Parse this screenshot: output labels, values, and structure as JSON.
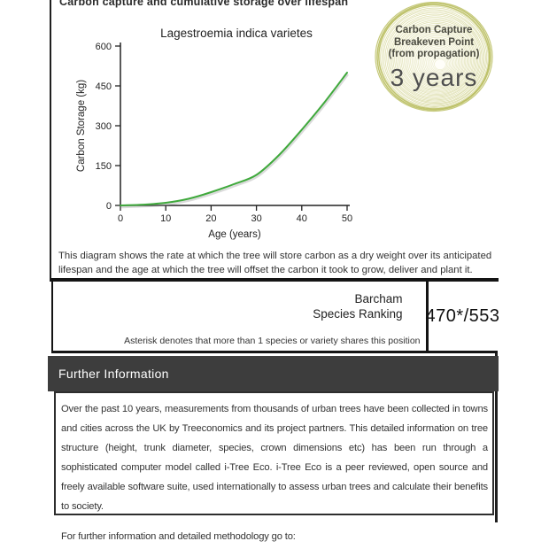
{
  "header": {
    "title": "Carbon capture and cumulative storage over lifespan"
  },
  "badge": {
    "line1": "Carbon Capture",
    "line2": "Breakeven Point",
    "line3": "(from propagation)",
    "value": "3 years",
    "ring_color": "#c5c87b",
    "ring_outer_color": "#bcc065"
  },
  "chart_data": {
    "type": "line",
    "title": "Lagestroemia indica varietes",
    "xlabel": "Age (years)",
    "ylabel": "Carbon Storage (kg)",
    "x": [
      0,
      5,
      10,
      15,
      20,
      25,
      30,
      35,
      40,
      45,
      50
    ],
    "values": [
      0,
      3,
      10,
      25,
      50,
      80,
      115,
      190,
      285,
      388,
      500
    ],
    "x_ticks": [
      0,
      10,
      20,
      30,
      40,
      50
    ],
    "y_ticks": [
      0,
      150,
      300,
      450,
      600
    ],
    "xlim": [
      0,
      50
    ],
    "ylim": [
      0,
      600
    ],
    "line_color": "#3fa93c",
    "axis_color": "#222222",
    "grid": false,
    "legend": null
  },
  "description": {
    "text": "This diagram shows the rate at which the tree will store carbon as a dry weight over its anticipated lifespan and the age at which the tree will offset the carbon it took to grow, deliver and plant it."
  },
  "ranking": {
    "org": "Barcham",
    "label": "Species Ranking",
    "value": "470*/553",
    "note": "Asterisk denotes that more than 1 species or variety shares this position"
  },
  "further_info": {
    "heading": "Further Information",
    "paragraph": "Over the past 10 years, measurements from thousands of urban trees have been collected in towns and cities across the UK by Treeconomics and its project partners. This detailed information on tree structure (height, trunk diameter, species, crown dimensions etc) has been run through a sophisticated computer model called i-Tree Eco. i-Tree Eco is a peer reviewed, open source and freely available software suite, used internationally to assess urban trees and calculate their benefits to society.",
    "link_line": "For further information and detailed methodology go to: www.treeconomics.co.uk/treecarboncertificate/"
  },
  "colors": {
    "band_dark": "#3d3d3d",
    "border_black": "#1f1f1f",
    "curve_green": "#3fa93c",
    "ring_olive": "#c5c87b"
  }
}
